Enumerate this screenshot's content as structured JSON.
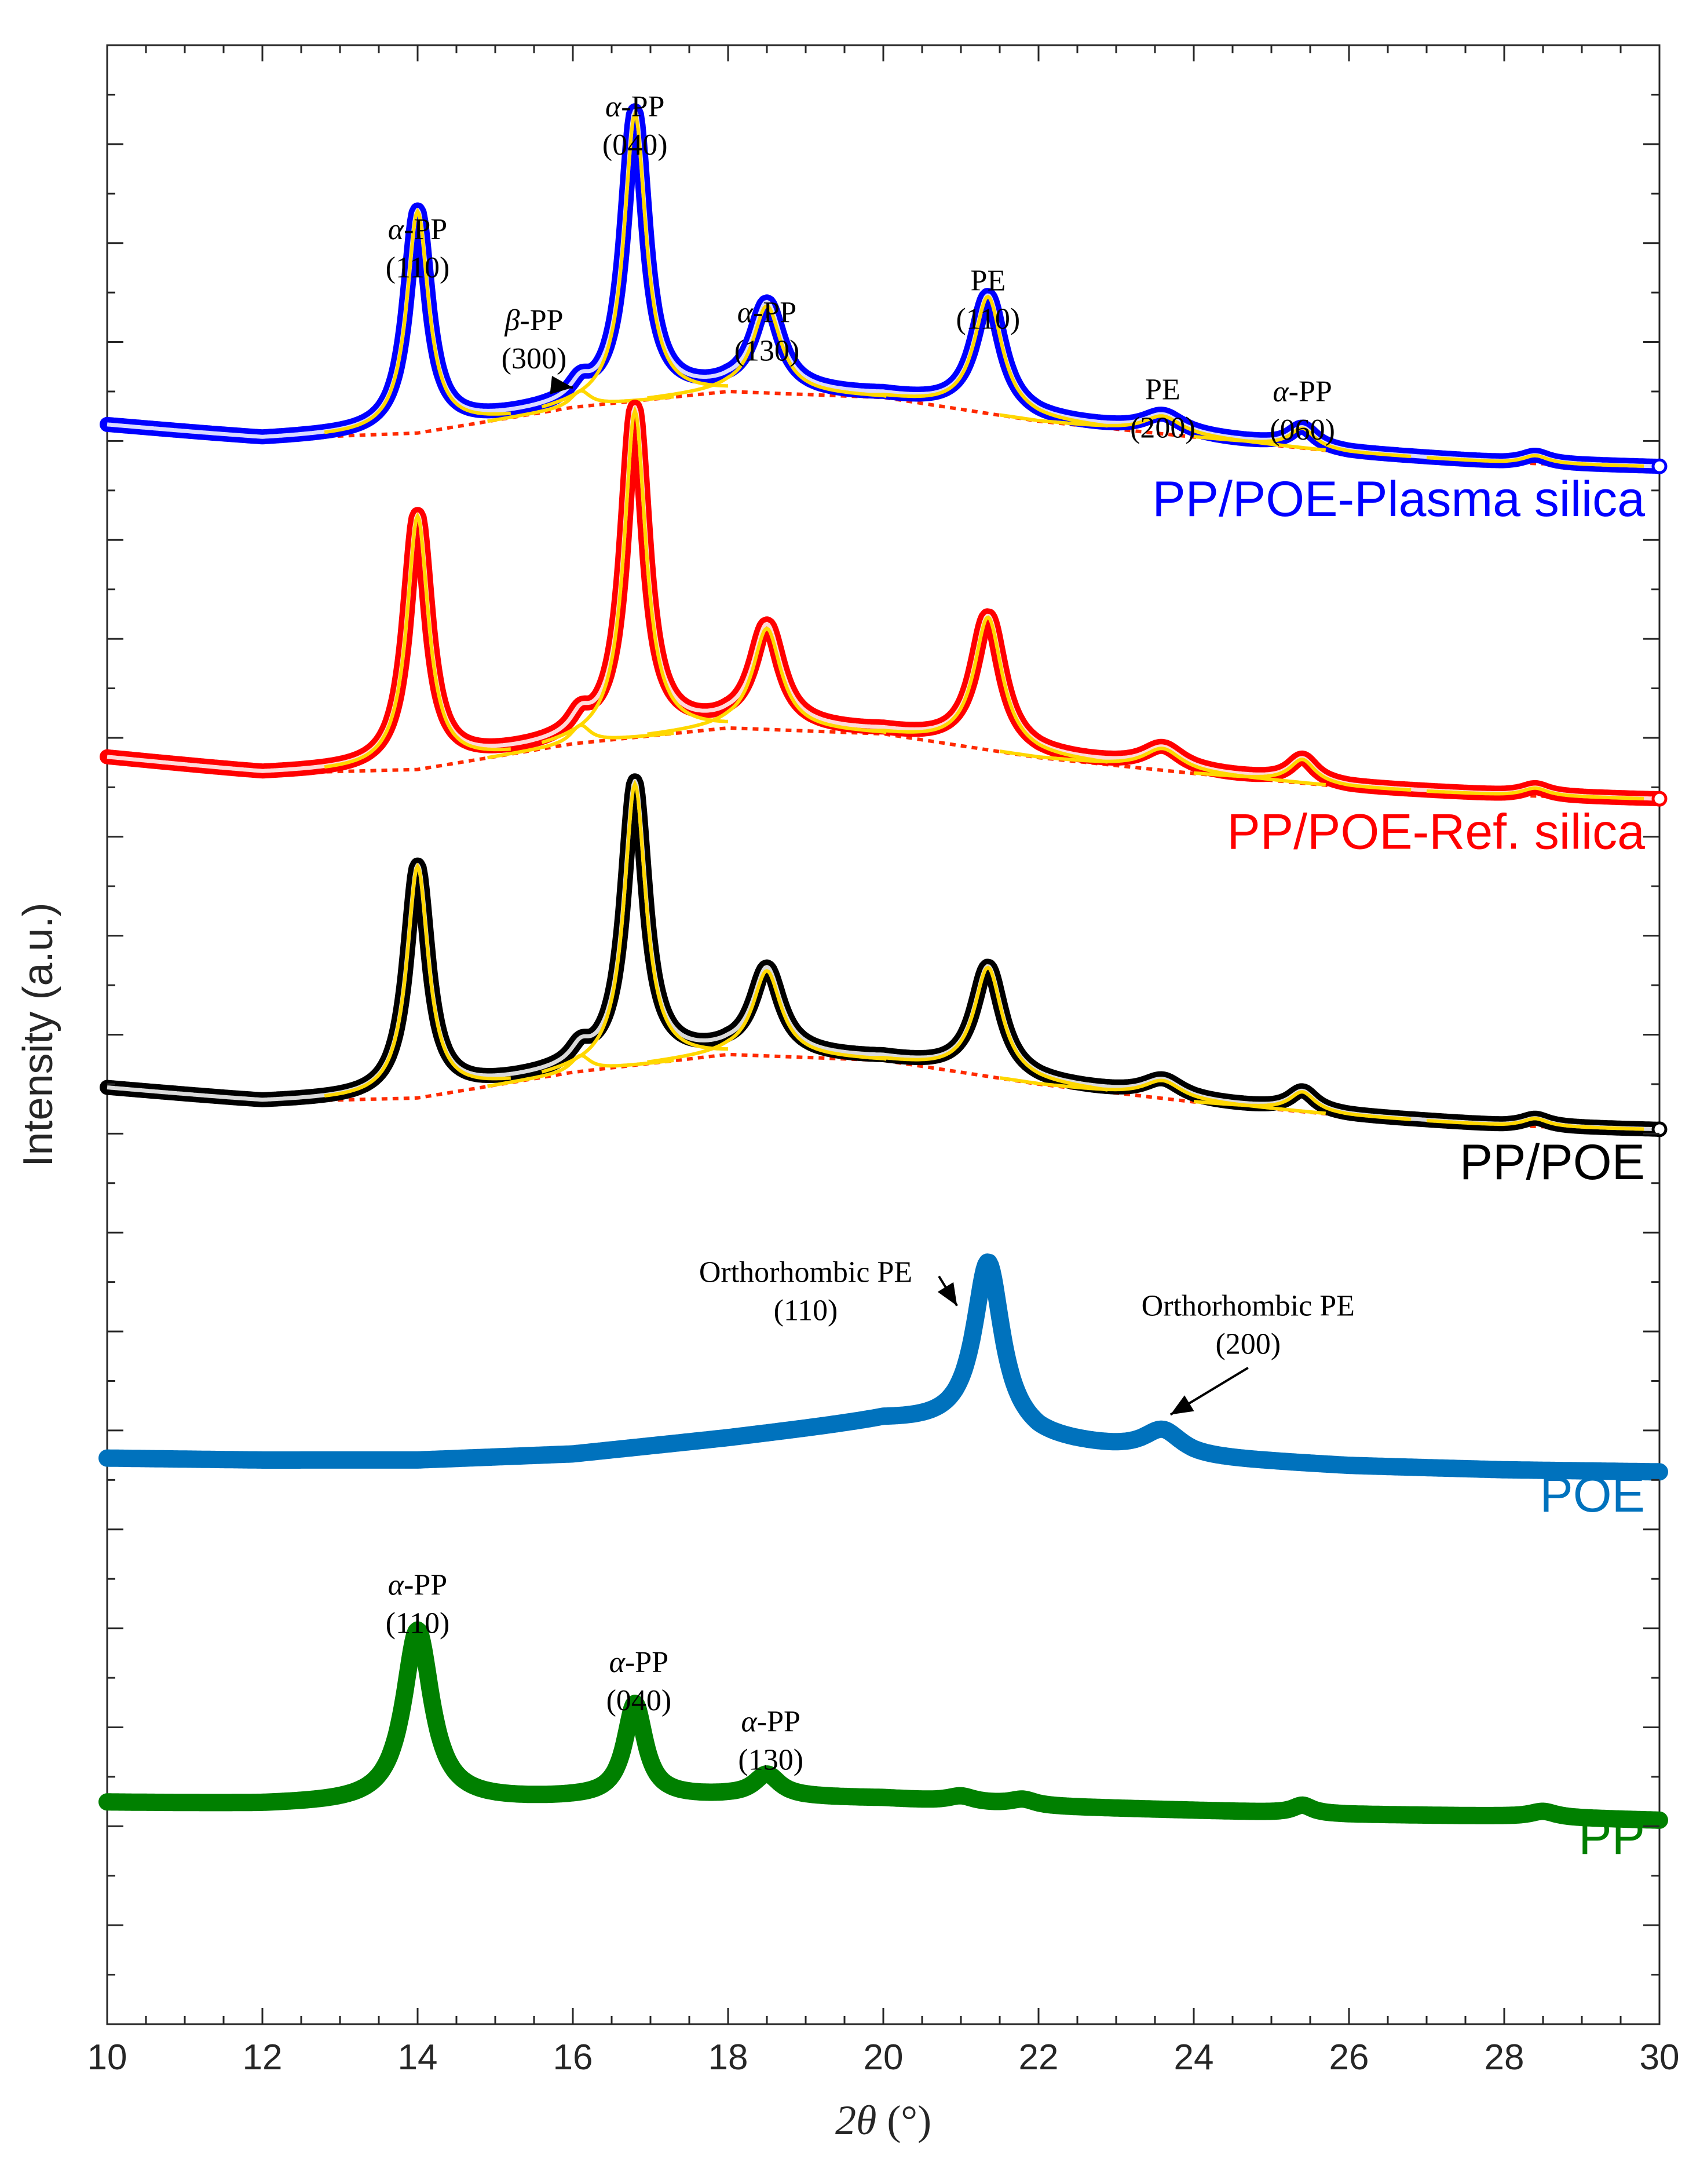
{
  "chart_data": {
    "type": "line",
    "title": "",
    "xlabel_var": "2θ",
    "xlabel_unit": "(°)",
    "ylabel": "Intensity (a.u.)",
    "xlim": [
      10,
      30
    ],
    "x_ticks": [
      10,
      12,
      14,
      16,
      18,
      20,
      22,
      24,
      26,
      28,
      30
    ],
    "x_tick_labels": [
      "10",
      "12",
      "14",
      "16",
      "18",
      "20",
      "22",
      "24",
      "26",
      "28",
      "30"
    ],
    "y_tick_labels_shown": false,
    "y_units_note": "Vertically offset XRD patterns; intensity in arbitrary units on a 0–100 scale (top frame = 100).",
    "ylim": [
      0,
      100
    ],
    "colors": {
      "pp_poe_plasma": "#0000ff",
      "pp_poe_ref": "#ff0000",
      "pp_poe": "#000000",
      "poe": "#0072bd",
      "pp": "#008000",
      "fit": "#ffd700",
      "background": "#ff2a00"
    },
    "series": [
      {
        "name": "PP/POE-Plasma silica",
        "color": "#0000ff",
        "fitted": true,
        "baseline": [
          [
            10,
            80.8
          ],
          [
            12,
            80.1
          ],
          [
            14,
            80.4
          ],
          [
            16,
            81.7
          ],
          [
            18,
            82.5
          ],
          [
            20,
            82.2
          ],
          [
            22,
            81.0
          ],
          [
            24,
            80.2
          ],
          [
            26,
            79.4
          ],
          [
            28,
            78.9
          ],
          [
            30,
            78.7
          ]
        ],
        "peaks": [
          {
            "x": 14.0,
            "height": 11.2,
            "width": 0.17
          },
          {
            "x": 16.1,
            "height": 0.8,
            "width": 0.15
          },
          {
            "x": 16.8,
            "height": 14.5,
            "width": 0.17
          },
          {
            "x": 18.5,
            "height": 4.4,
            "width": 0.22
          },
          {
            "x": 21.35,
            "height": 5.9,
            "width": 0.22
          },
          {
            "x": 23.6,
            "height": 0.9,
            "width": 0.3
          },
          {
            "x": 25.4,
            "height": 1.0,
            "width": 0.2
          },
          {
            "x": 28.4,
            "height": 0.4,
            "width": 0.2
          }
        ]
      },
      {
        "name": "PP/POE-Ref. silica",
        "color": "#ff0000",
        "fitted": true,
        "baseline": [
          [
            10,
            64.0
          ],
          [
            12,
            63.2
          ],
          [
            14,
            63.4
          ],
          [
            16,
            64.7
          ],
          [
            18,
            65.5
          ],
          [
            20,
            65.2
          ],
          [
            22,
            64.0
          ],
          [
            24,
            63.2
          ],
          [
            26,
            62.5
          ],
          [
            28,
            62.1
          ],
          [
            30,
            61.9
          ]
        ],
        "peaks": [
          {
            "x": 14.0,
            "height": 12.8,
            "width": 0.17
          },
          {
            "x": 16.1,
            "height": 0.9,
            "width": 0.15
          },
          {
            "x": 16.8,
            "height": 16.5,
            "width": 0.17
          },
          {
            "x": 18.5,
            "height": 5.1,
            "width": 0.22
          },
          {
            "x": 21.35,
            "height": 6.7,
            "width": 0.22
          },
          {
            "x": 23.6,
            "height": 1.1,
            "width": 0.3
          },
          {
            "x": 25.4,
            "height": 1.2,
            "width": 0.2
          },
          {
            "x": 28.4,
            "height": 0.4,
            "width": 0.2
          }
        ]
      },
      {
        "name": "PP/POE",
        "color": "#000000",
        "fitted": true,
        "baseline": [
          [
            10,
            47.3
          ],
          [
            12,
            46.6
          ],
          [
            14,
            46.8
          ],
          [
            16,
            48.1
          ],
          [
            18,
            49.0
          ],
          [
            20,
            48.7
          ],
          [
            22,
            47.5
          ],
          [
            24,
            46.6
          ],
          [
            26,
            45.9
          ],
          [
            28,
            45.4
          ],
          [
            30,
            45.2
          ]
        ],
        "peaks": [
          {
            "x": 14.0,
            "height": 11.7,
            "width": 0.17
          },
          {
            "x": 16.1,
            "height": 0.8,
            "width": 0.15
          },
          {
            "x": 16.8,
            "height": 14.2,
            "width": 0.17
          },
          {
            "x": 18.5,
            "height": 4.3,
            "width": 0.22
          },
          {
            "x": 21.35,
            "height": 5.5,
            "width": 0.22
          },
          {
            "x": 23.6,
            "height": 0.9,
            "width": 0.3
          },
          {
            "x": 25.4,
            "height": 1.0,
            "width": 0.2
          },
          {
            "x": 28.4,
            "height": 0.4,
            "width": 0.2
          }
        ]
      },
      {
        "name": "POE",
        "color": "#0072bd",
        "fitted": false,
        "baseline": [
          [
            10,
            28.6
          ],
          [
            12,
            28.5
          ],
          [
            14,
            28.5
          ],
          [
            16,
            28.8
          ],
          [
            18,
            29.6
          ],
          [
            20,
            30.5
          ],
          [
            21.35,
            30.2
          ],
          [
            22,
            29.5
          ],
          [
            24,
            28.6
          ],
          [
            26,
            28.2
          ],
          [
            28,
            28.0
          ],
          [
            30,
            27.9
          ]
        ],
        "peaks": [
          {
            "x": 21.35,
            "height": 8.3,
            "width": 0.22
          },
          {
            "x": 23.6,
            "height": 1.2,
            "width": 0.3
          }
        ]
      },
      {
        "name": "PP",
        "color": "#008000",
        "fitted": false,
        "baseline": [
          [
            10,
            11.2
          ],
          [
            12,
            11.1
          ],
          [
            14,
            11.2
          ],
          [
            16,
            11.4
          ],
          [
            18,
            11.5
          ],
          [
            20,
            11.4
          ],
          [
            22,
            11.0
          ],
          [
            24,
            10.8
          ],
          [
            26,
            10.6
          ],
          [
            28,
            10.5
          ],
          [
            30,
            10.3
          ]
        ],
        "peaks": [
          {
            "x": 14.0,
            "height": 8.7,
            "width": 0.22
          },
          {
            "x": 16.8,
            "height": 4.7,
            "width": 0.16
          },
          {
            "x": 18.5,
            "height": 1.1,
            "width": 0.2
          },
          {
            "x": 21.0,
            "height": 0.3,
            "width": 0.2
          },
          {
            "x": 21.8,
            "height": 0.3,
            "width": 0.2
          },
          {
            "x": 25.4,
            "height": 0.4,
            "width": 0.15
          },
          {
            "x": 28.5,
            "height": 0.3,
            "width": 0.2
          }
        ]
      }
    ],
    "annotations": [
      {
        "text": "α-PP",
        "text2": "(110)",
        "x": 14.0,
        "y": 90.2
      },
      {
        "text": "β-PP",
        "text2": "(300)",
        "x": 15.5,
        "y": 85.6,
        "arrow_to": [
          16.0,
          82.7
        ]
      },
      {
        "text": "α-PP",
        "text2": "(040)",
        "x": 16.8,
        "y": 96.4
      },
      {
        "text": "α-PP",
        "text2": "(130)",
        "x": 18.5,
        "y": 86.0
      },
      {
        "text": "PE",
        "text2": "(110)",
        "x": 21.35,
        "y": 87.6
      },
      {
        "text": "PE",
        "text2": "(200)",
        "x": 23.6,
        "y": 82.1
      },
      {
        "text": "α-PP",
        "text2": "(060)",
        "x": 25.4,
        "y": 82.0
      },
      {
        "text": "Orthorhombic PE",
        "text2": "(110)",
        "x": 19.0,
        "y": 37.5,
        "arrow_to": [
          20.95,
          36.3
        ]
      },
      {
        "text": "Orthorhombic PE",
        "text2": "(200)",
        "x": 24.7,
        "y": 35.8,
        "arrow_to": [
          23.7,
          30.8
        ]
      },
      {
        "text": "α-PP",
        "text2": "(110)",
        "x": 14.0,
        "y": 21.7
      },
      {
        "text": "α-PP",
        "text2": "(040)",
        "x": 16.85,
        "y": 17.8
      },
      {
        "text": "α-PP",
        "text2": "(130)",
        "x": 18.55,
        "y": 14.8
      }
    ]
  }
}
